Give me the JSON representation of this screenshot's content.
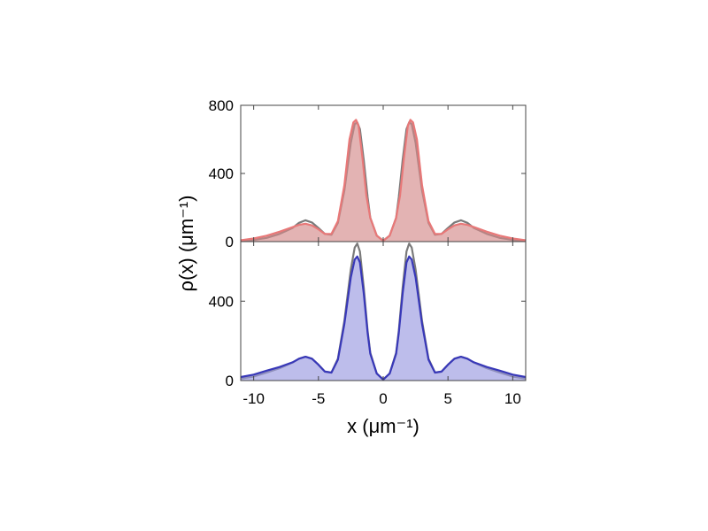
{
  "chart_data": {
    "type": "area",
    "xlabel": "x (μm⁻¹)",
    "ylabel": "ρ(x) (μm⁻¹)",
    "xlim": [
      -11,
      11
    ],
    "xticks": [
      -10,
      -5,
      0,
      5,
      10
    ],
    "grid": false,
    "legend": "none",
    "panels": [
      {
        "id": "top",
        "ylim": [
          0,
          800
        ],
        "yticks": [
          0,
          400,
          800
        ],
        "series": [
          {
            "color": "#7a7a7a",
            "fill": "none",
            "x": [
              -11,
              -10,
              -9,
              -8,
              -7,
              -6.5,
              -6,
              -5.5,
              -5,
              -4.5,
              -4,
              -3.5,
              -3,
              -2.5,
              -2.2,
              -2,
              -1.8,
              -1.5,
              -1.2,
              -1,
              -0.5,
              0,
              0.5,
              1,
              1.2,
              1.5,
              1.8,
              2,
              2.2,
              2.5,
              3,
              3.5,
              4,
              4.5,
              5,
              5.5,
              6,
              6.5,
              7,
              8,
              9,
              10,
              11
            ],
            "y": [
              4,
              10,
              22,
              45,
              80,
              110,
              125,
              112,
              80,
              45,
              40,
              110,
              300,
              580,
              690,
              700,
              660,
              480,
              260,
              140,
              35,
              5,
              35,
              140,
              260,
              480,
              660,
              700,
              690,
              580,
              300,
              110,
              40,
              45,
              80,
              112,
              125,
              110,
              80,
              45,
              22,
              10,
              4
            ]
          },
          {
            "color": "#e87878",
            "fill": "#d48a8a",
            "x": [
              -11,
              -10,
              -9,
              -8,
              -7,
              -6.5,
              -6,
              -5.5,
              -5,
              -4.5,
              -4,
              -3.5,
              -3,
              -2.6,
              -2.3,
              -2.1,
              -1.9,
              -1.6,
              -1.3,
              -1,
              -0.5,
              0,
              0.5,
              1,
              1.3,
              1.6,
              1.9,
              2.1,
              2.3,
              2.6,
              3,
              3.5,
              4,
              4.5,
              5,
              5.5,
              6,
              6.5,
              7,
              8,
              9,
              10,
              11
            ],
            "y": [
              8,
              18,
              35,
              58,
              85,
              98,
              105,
              95,
              72,
              45,
              45,
              120,
              330,
              600,
              700,
              715,
              680,
              490,
              270,
              140,
              35,
              5,
              35,
              140,
              270,
              490,
              680,
              715,
              700,
              600,
              330,
              120,
              45,
              45,
              72,
              95,
              105,
              98,
              85,
              58,
              35,
              18,
              8
            ]
          }
        ]
      },
      {
        "id": "bottom",
        "ylim": [
          0,
          700
        ],
        "yticks": [
          0,
          400
        ],
        "series": [
          {
            "color": "#7a7a7a",
            "fill": "none",
            "x": [
              -11,
              -10,
              -9,
              -8,
              -7,
              -6.5,
              -6,
              -5.5,
              -5,
              -4.5,
              -4,
              -3.5,
              -3,
              -2.5,
              -2.2,
              -2,
              -1.8,
              -1.5,
              -1.2,
              -1,
              -0.5,
              0,
              0.5,
              1,
              1.2,
              1.5,
              1.8,
              2,
              2.2,
              2.5,
              3,
              3.5,
              4,
              4.5,
              5,
              5.5,
              6,
              6.5,
              7,
              8,
              9,
              10,
              11
            ],
            "y": [
              10,
              20,
              40,
              62,
              90,
              110,
              120,
              110,
              80,
              45,
              40,
              110,
              300,
              560,
              670,
              690,
              650,
              470,
              250,
              140,
              35,
              5,
              35,
              140,
              250,
              470,
              650,
              690,
              670,
              560,
              300,
              110,
              40,
              45,
              80,
              110,
              120,
              110,
              90,
              62,
              40,
              20,
              10
            ]
          },
          {
            "color": "#3838b8",
            "fill": "#9a9ae0",
            "x": [
              -11,
              -10,
              -9,
              -8,
              -7,
              -6.5,
              -6,
              -5.5,
              -5,
              -4.5,
              -4,
              -3.5,
              -3,
              -2.5,
              -2.2,
              -2,
              -1.8,
              -1.5,
              -1.2,
              -1,
              -0.5,
              0,
              0.5,
              1,
              1.2,
              1.5,
              1.8,
              2,
              2.2,
              2.5,
              3,
              3.5,
              4,
              4.5,
              5,
              5.5,
              6,
              6.5,
              7,
              8,
              9,
              10,
              11
            ],
            "y": [
              18,
              30,
              50,
              68,
              92,
              110,
              120,
              110,
              80,
              45,
              40,
              105,
              285,
              520,
              610,
              625,
              595,
              440,
              240,
              135,
              35,
              5,
              35,
              135,
              240,
              440,
              595,
              625,
              610,
              520,
              285,
              105,
              40,
              45,
              80,
              110,
              120,
              110,
              92,
              68,
              50,
              30,
              18
            ]
          }
        ]
      }
    ]
  }
}
